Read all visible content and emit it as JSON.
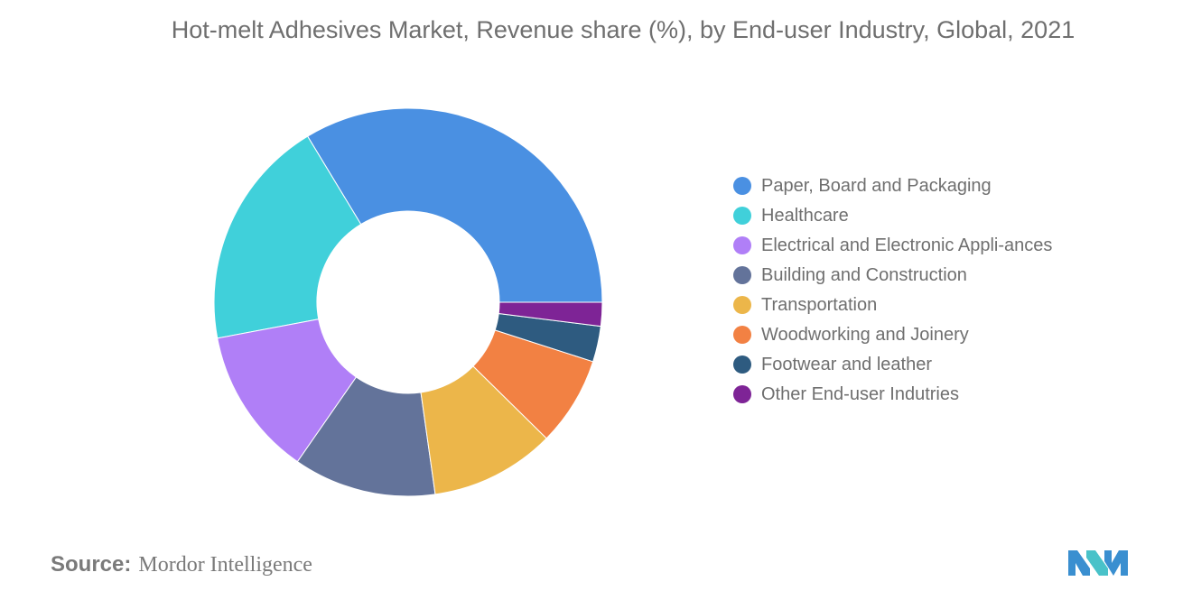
{
  "chart_data": {
    "type": "pie",
    "donut": true,
    "title": "Hot-melt Adhesives Market, Revenue share (%), by End-user Industry, Global, 2021",
    "categories": [
      "Paper, Board and Packaging",
      "Healthcare",
      "Electrical and Electronic Appli-ances",
      "Building and Construction",
      "Transportation",
      "Woodworking and Joinery",
      "Footwear and leather",
      "Other End-user Indutries"
    ],
    "values": [
      34,
      19.5,
      12.5,
      12,
      10.5,
      7.5,
      3,
      2
    ],
    "colors": [
      "#4a90e2",
      "#40d0da",
      "#b07ff7",
      "#63739a",
      "#ecb64a",
      "#f28143",
      "#2e5b80",
      "#7e2496"
    ],
    "legend_position": "right"
  },
  "source": {
    "label": "Source:",
    "value": "Mordor Intelligence"
  }
}
